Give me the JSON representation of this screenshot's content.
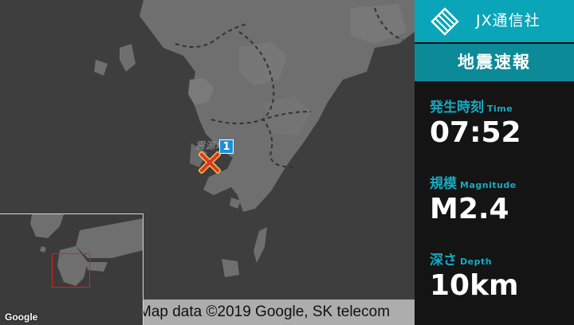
{
  "map": {
    "epicenter_label": "震源地",
    "epicenter_number": "1",
    "google_logo": "Google",
    "attribution": "Map data ©2019 Google, SK telecom"
  },
  "panel": {
    "brand": "JX通信社",
    "title": "地震速報",
    "fields": [
      {
        "label": "発生時刻",
        "sub": "Time",
        "value": "07:52"
      },
      {
        "label": "規模",
        "sub": "Magnitude",
        "value": "M2.4"
      },
      {
        "label": "深さ",
        "sub": "Depth",
        "value": "10km"
      }
    ]
  },
  "colors": {
    "accent": "#0aa5b8",
    "accent_dark": "#0c8a98",
    "label": "#17a9c0",
    "panel_bg": "#141414",
    "map_bg": "#3e3e3e",
    "land": "#6f6f6f",
    "marker": "#e0332b",
    "badge": "#1c8fd6"
  },
  "icons": {
    "brand": "jx-logo-icon",
    "epicenter": "epicenter-x-icon"
  }
}
